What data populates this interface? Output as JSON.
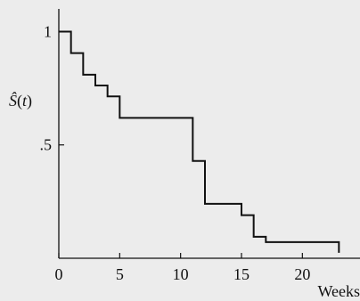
{
  "chart_data": {
    "type": "line",
    "step": true,
    "title": "",
    "xlabel": "Weeks",
    "ylabel_parts": {
      "base": "Ŝ",
      "open_paren": "(",
      "variable": "t",
      "close_paren": ")"
    },
    "xlim": [
      0,
      24
    ],
    "ylim": [
      0,
      1.1
    ],
    "x_ticks": [
      {
        "value": 0,
        "label": "0"
      },
      {
        "value": 5,
        "label": "5"
      },
      {
        "value": 10,
        "label": "10"
      },
      {
        "value": 15,
        "label": "15"
      },
      {
        "value": 20,
        "label": "20"
      }
    ],
    "y_ticks": [
      {
        "value": 0.5,
        "label": ".5"
      },
      {
        "value": 1,
        "label": "1"
      }
    ],
    "grid": false,
    "series": [
      {
        "x": [
          0,
          1,
          2,
          3,
          4,
          5,
          8,
          11,
          12,
          15,
          16,
          17,
          22,
          23
        ],
        "y": [
          1,
          0.905,
          0.81,
          0.762,
          0.714,
          0.619,
          0.619,
          0.429,
          0.24,
          0.19,
          0.095,
          0.071,
          0.071,
          0.024
        ]
      }
    ]
  }
}
